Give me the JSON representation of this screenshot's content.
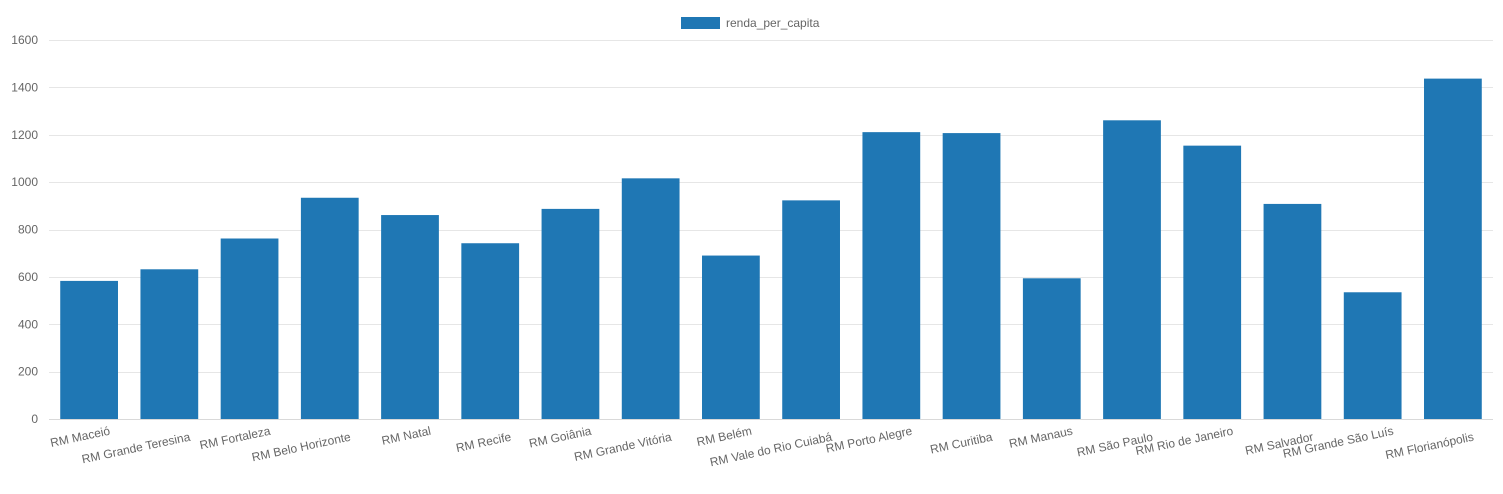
{
  "chart_data": {
    "type": "bar",
    "title": "",
    "xlabel": "",
    "ylabel": "",
    "ylim": [
      0,
      1600
    ],
    "yticks": [
      0,
      200,
      400,
      600,
      800,
      1000,
      1200,
      1400,
      1600
    ],
    "grid": true,
    "legend_position": "top-center",
    "categories": [
      "RM Maceió",
      "RM Grande Teresina",
      "RM Fortaleza",
      "RM Belo Horizonte",
      "RM Natal",
      "RM Recife",
      "RM Goiânia",
      "RM Grande Vitória",
      "RM Belém",
      "RM Vale do Rio Cuiabá",
      "RM Porto Alegre",
      "RM Curitiba",
      "RM Manaus",
      "RM São Paulo",
      "RM Rio de Janeiro",
      "RM Salvador",
      "RM Grande São Luís",
      "RM Florianópolis"
    ],
    "series": [
      {
        "name": "renda_per_capita",
        "color": "#1f77b4",
        "values": [
          583,
          632,
          762,
          934,
          861,
          742,
          887,
          1016,
          690,
          923,
          1211,
          1207,
          594,
          1261,
          1154,
          908,
          535,
          1437
        ]
      }
    ]
  }
}
